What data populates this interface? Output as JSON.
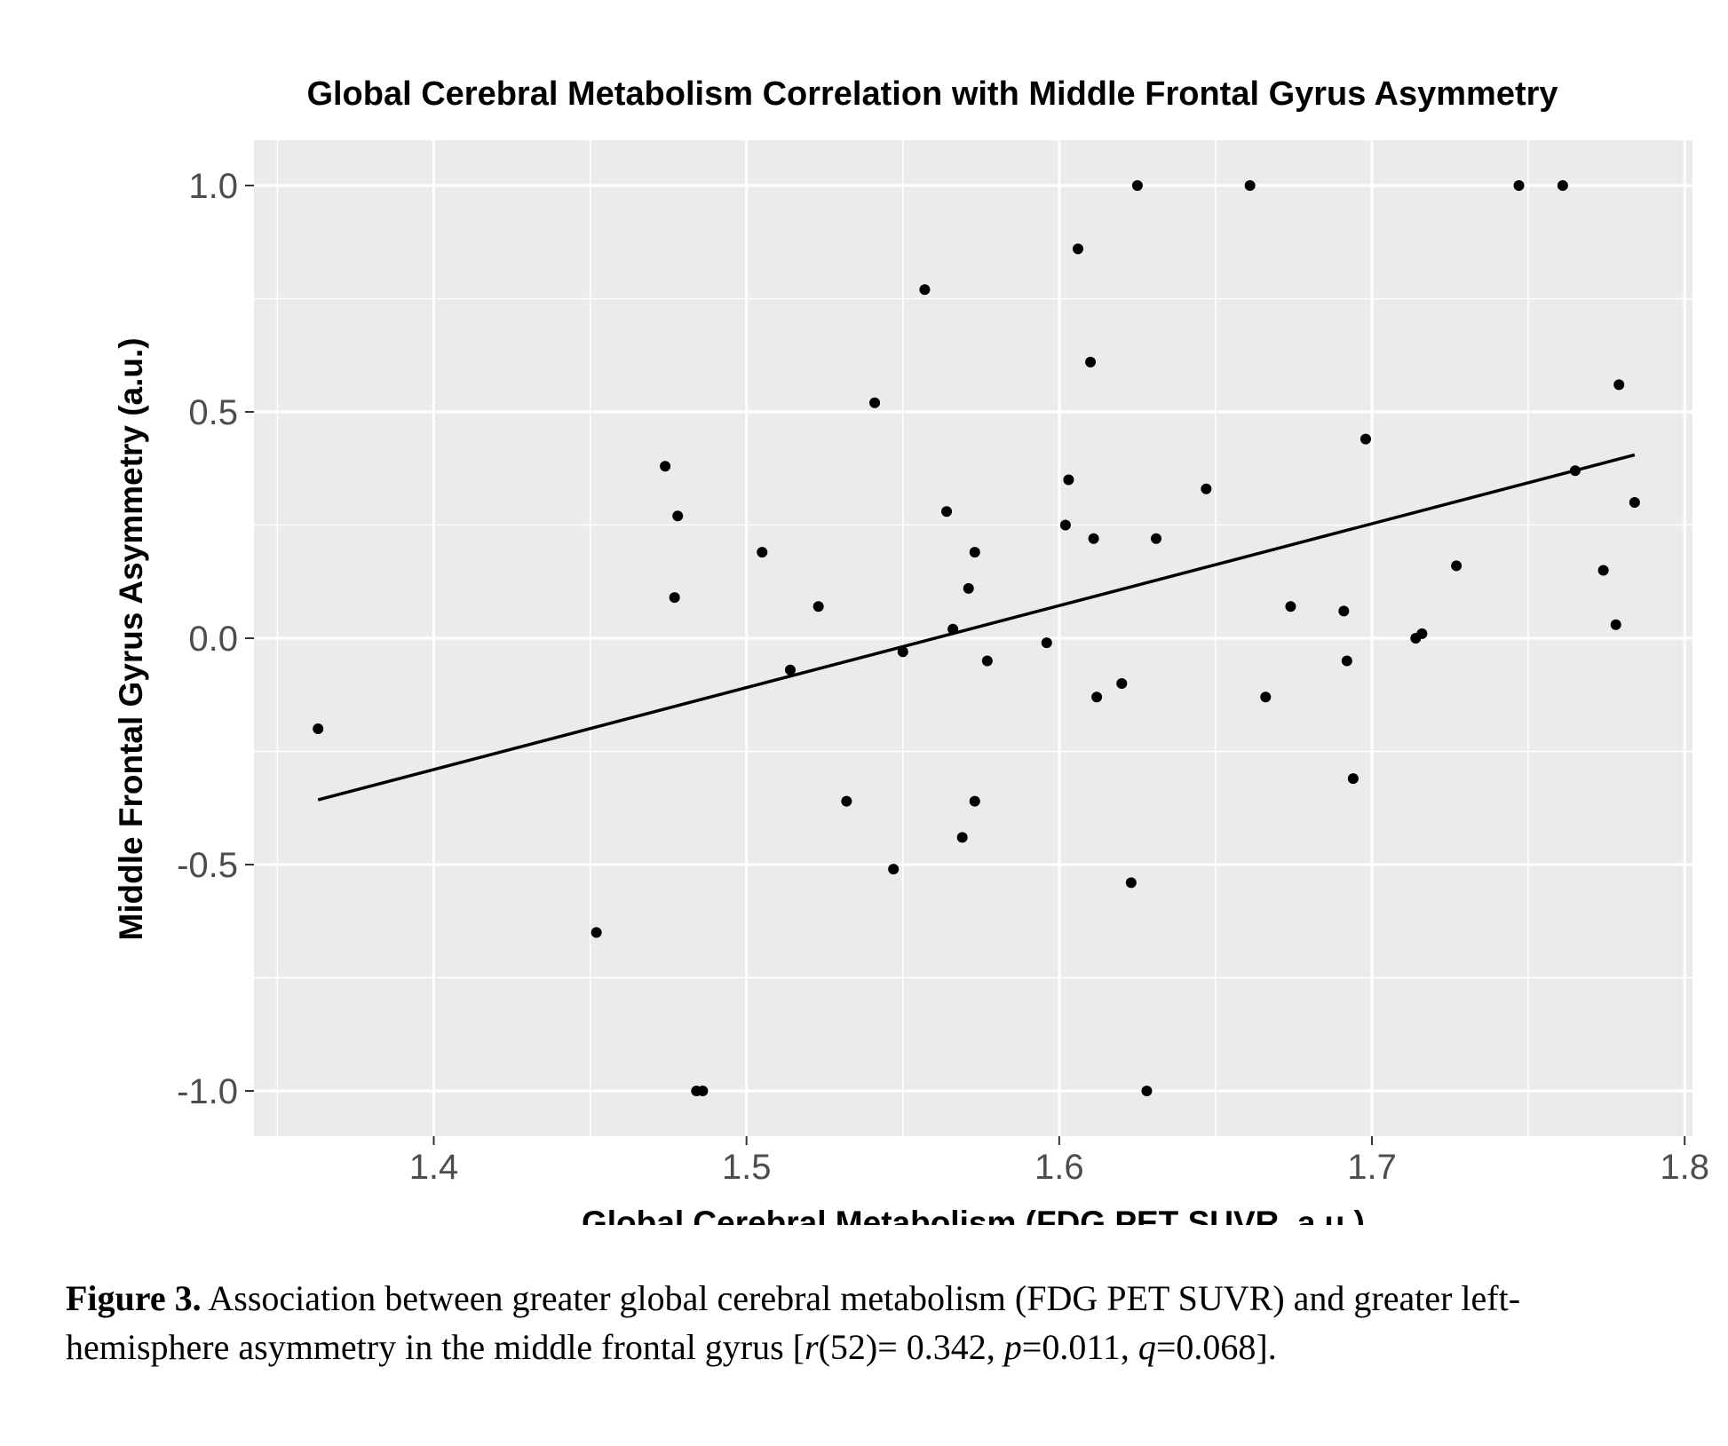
{
  "chart_data": {
    "type": "scatter",
    "title": "Global Cerebral Metabolism Correlation with Middle Frontal Gyrus Asymmetry",
    "xlabel": "Global Cerebral Metabolism (FDG PET SUVR, a.u.)",
    "ylabel": "Middle Frontal Gyrus Asymmetry (a.u.)",
    "xlim": [
      1.3425,
      1.8025
    ],
    "ylim": [
      -1.1,
      1.1
    ],
    "xticks": [
      1.4,
      1.5,
      1.6,
      1.7,
      1.8
    ],
    "xtick_labels": [
      "1.4",
      "1.5",
      "1.6",
      "1.7",
      "1.8"
    ],
    "yticks": [
      1.0,
      0.5,
      0.0,
      -0.5,
      -1.0
    ],
    "ytick_labels": [
      "1.0",
      "0.5",
      "0.0",
      "-0.5",
      "-1.0"
    ],
    "grid": true,
    "background": "#ebebeb",
    "point_color": "#000000",
    "points": [
      {
        "x": 1.363,
        "y": -0.2
      },
      {
        "x": 1.452,
        "y": -0.65
      },
      {
        "x": 1.474,
        "y": 0.38
      },
      {
        "x": 1.478,
        "y": 0.27
      },
      {
        "x": 1.477,
        "y": 0.09
      },
      {
        "x": 1.484,
        "y": -1.0
      },
      {
        "x": 1.486,
        "y": -1.0
      },
      {
        "x": 1.505,
        "y": 0.19
      },
      {
        "x": 1.514,
        "y": -0.07
      },
      {
        "x": 1.523,
        "y": 0.07
      },
      {
        "x": 1.532,
        "y": -0.36
      },
      {
        "x": 1.541,
        "y": 0.52
      },
      {
        "x": 1.547,
        "y": -0.51
      },
      {
        "x": 1.55,
        "y": -0.03
      },
      {
        "x": 1.557,
        "y": 0.77
      },
      {
        "x": 1.564,
        "y": 0.28
      },
      {
        "x": 1.566,
        "y": 0.02
      },
      {
        "x": 1.569,
        "y": -0.44
      },
      {
        "x": 1.571,
        "y": 0.11
      },
      {
        "x": 1.573,
        "y": 0.19
      },
      {
        "x": 1.573,
        "y": -0.36
      },
      {
        "x": 1.577,
        "y": -0.05
      },
      {
        "x": 1.596,
        "y": -0.01
      },
      {
        "x": 1.602,
        "y": 0.25
      },
      {
        "x": 1.603,
        "y": 0.35
      },
      {
        "x": 1.606,
        "y": 0.86
      },
      {
        "x": 1.61,
        "y": 0.61
      },
      {
        "x": 1.611,
        "y": 0.22
      },
      {
        "x": 1.612,
        "y": -0.13
      },
      {
        "x": 1.62,
        "y": -0.1
      },
      {
        "x": 1.623,
        "y": -0.54
      },
      {
        "x": 1.625,
        "y": 1.0
      },
      {
        "x": 1.628,
        "y": -1.0
      },
      {
        "x": 1.631,
        "y": 0.22
      },
      {
        "x": 1.647,
        "y": 0.33
      },
      {
        "x": 1.661,
        "y": 1.0
      },
      {
        "x": 1.666,
        "y": -0.13
      },
      {
        "x": 1.674,
        "y": 0.07
      },
      {
        "x": 1.691,
        "y": 0.06
      },
      {
        "x": 1.692,
        "y": -0.05
      },
      {
        "x": 1.694,
        "y": -0.31
      },
      {
        "x": 1.698,
        "y": 0.44
      },
      {
        "x": 1.714,
        "y": 0.0
      },
      {
        "x": 1.716,
        "y": 0.01
      },
      {
        "x": 1.727,
        "y": 0.16
      },
      {
        "x": 1.747,
        "y": 1.0
      },
      {
        "x": 1.761,
        "y": 1.0
      },
      {
        "x": 1.765,
        "y": 0.37
      },
      {
        "x": 1.774,
        "y": 0.15
      },
      {
        "x": 1.778,
        "y": 0.03
      },
      {
        "x": 1.779,
        "y": 0.56
      },
      {
        "x": 1.784,
        "y": 0.3
      }
    ],
    "fit_line": {
      "x": [
        1.363,
        1.784
      ],
      "y": [
        -0.357,
        0.405
      ],
      "color": "#000000"
    }
  },
  "caption": {
    "label": "Figure 3.",
    "text_1": " Association between greater global cerebral metabolism (FDG PET SUVR) and greater left-hemisphere asymmetry in the middle frontal gyrus [",
    "r": "r",
    "text_2": "(52)= 0.342, ",
    "p": "p",
    "text_3": "=0.011, ",
    "q": "q",
    "text_4": "=0.068]."
  }
}
